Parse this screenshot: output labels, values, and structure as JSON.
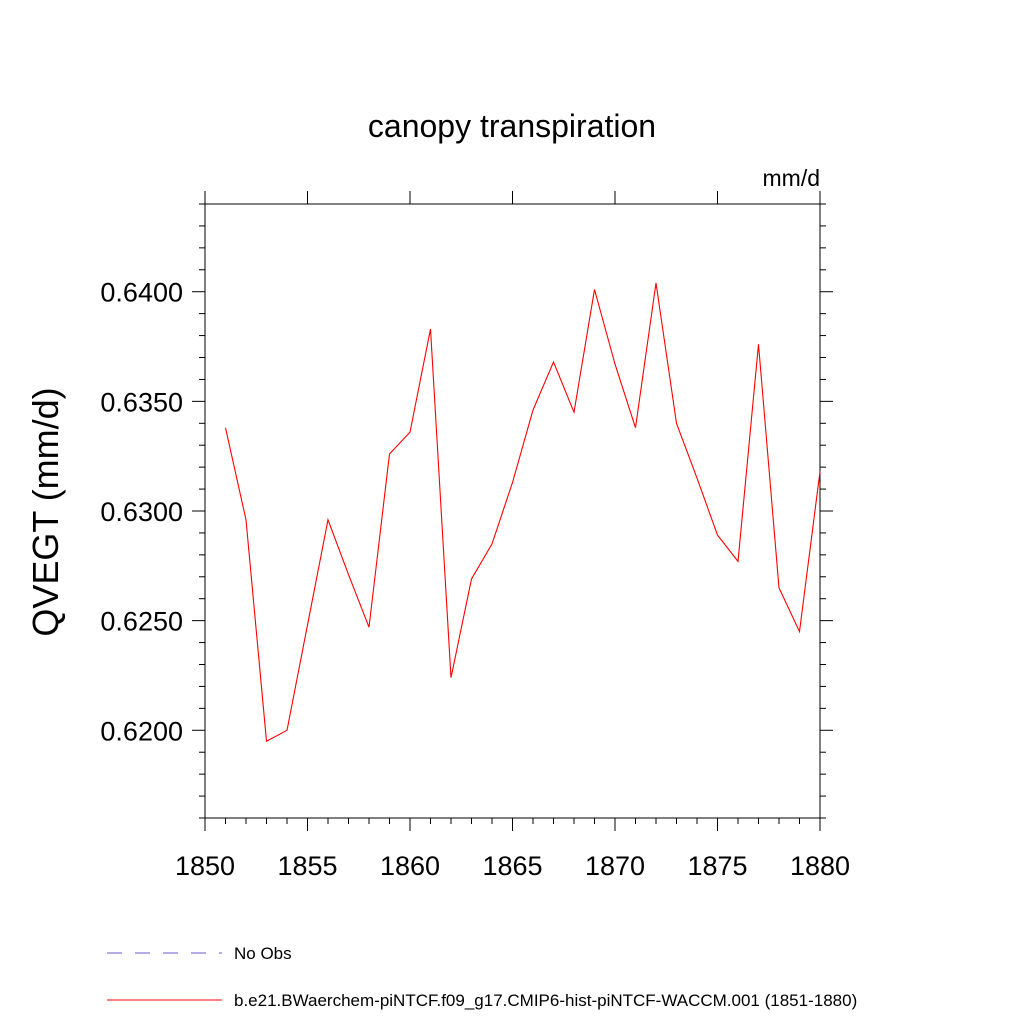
{
  "chart_data": {
    "type": "line",
    "title": "canopy transpiration",
    "units": "mm/d",
    "ylabel": "QVEGT  (mm/d)",
    "xlabel": "",
    "xlim": [
      1850,
      1880
    ],
    "ylim": [
      0.616,
      0.644
    ],
    "xticks": [
      1850,
      1855,
      1860,
      1865,
      1870,
      1875,
      1880
    ],
    "xtick_labels": [
      "1850",
      "1855",
      "1860",
      "1865",
      "1870",
      "1875",
      "1880"
    ],
    "yticks": [
      0.62,
      0.625,
      0.63,
      0.635,
      0.64
    ],
    "ytick_labels": [
      "0.6200",
      "0.6250",
      "0.6300",
      "0.6350",
      "0.6400"
    ],
    "grid": false,
    "legend_position": "bottom",
    "series": [
      {
        "name": "b.e21.BWaerchem-piNTCF.f09_g17.CMIP6-hist-piNTCF-WACCM.001 (1851-1880)",
        "color": "#ff0000",
        "dash": "solid",
        "x": [
          1851,
          1852,
          1853,
          1854,
          1855,
          1856,
          1857,
          1858,
          1859,
          1860,
          1861,
          1862,
          1863,
          1864,
          1865,
          1866,
          1867,
          1868,
          1869,
          1870,
          1871,
          1872,
          1873,
          1874,
          1875,
          1876,
          1877,
          1878,
          1879,
          1880
        ],
        "y": [
          0.6338,
          0.6296,
          0.6195,
          0.62,
          0.6248,
          0.6296,
          0.6271,
          0.6247,
          0.6326,
          0.6336,
          0.6383,
          0.6224,
          0.6269,
          0.6285,
          0.6313,
          0.6346,
          0.6368,
          0.6345,
          0.6401,
          0.6367,
          0.6338,
          0.6404,
          0.634,
          0.6315,
          0.6289,
          0.6277,
          0.6376,
          0.6265,
          0.6245,
          0.6318
        ]
      }
    ],
    "legend": [
      {
        "label": "No Obs",
        "color": "#6a5acd",
        "dash": "dashed"
      },
      {
        "label": "b.e21.BWaerchem-piNTCF.f09_g17.CMIP6-hist-piNTCF-WACCM.001 (1851-1880)",
        "color": "#ff0000",
        "dash": "solid"
      }
    ]
  }
}
